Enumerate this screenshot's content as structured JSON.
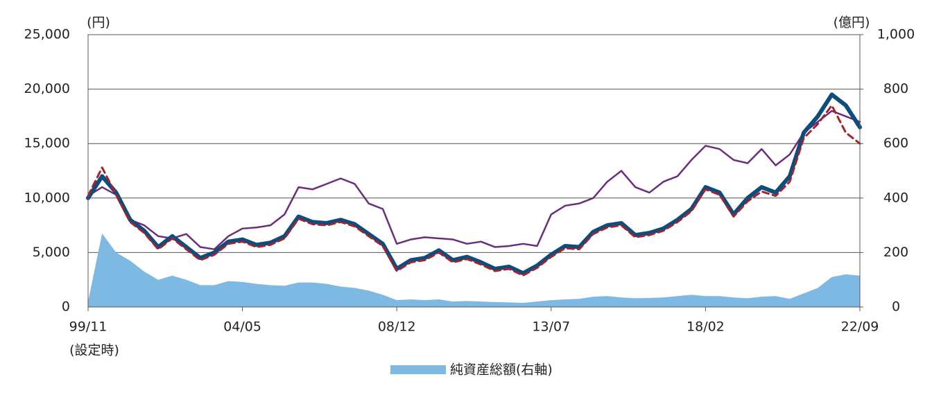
{
  "chart_data": {
    "type": "line",
    "y_unit": "(円)",
    "y2_unit": "(億円)",
    "x_note": "(設定時)",
    "categories": [
      "99/11",
      null,
      null,
      null,
      null,
      null,
      null,
      null,
      null,
      null,
      null,
      "04/05",
      null,
      null,
      null,
      null,
      null,
      null,
      null,
      null,
      null,
      null,
      "08/12",
      null,
      null,
      null,
      null,
      null,
      null,
      null,
      null,
      null,
      null,
      "13/07",
      null,
      null,
      null,
      null,
      null,
      null,
      null,
      null,
      null,
      null,
      "18/02",
      null,
      null,
      null,
      null,
      null,
      null,
      null,
      null,
      null,
      null,
      "22/09"
    ],
    "ylim": [
      0,
      25000
    ],
    "yticks": [
      0,
      {
        "value": 5000,
        "label": "5,000"
      },
      {
        "value": 10000,
        "label": "10,000"
      },
      {
        "value": 15000,
        "label": "15,000"
      },
      {
        "value": 20000,
        "label": "20,000"
      },
      {
        "value": 25000,
        "label": "25,000"
      }
    ],
    "y2lim": [
      0,
      1000
    ],
    "y2ticks": [
      0,
      200,
      400,
      600,
      800,
      {
        "value": 1000,
        "label": "1,000"
      }
    ],
    "grid": true,
    "legend": "bottom",
    "series": [
      {
        "name": "純資産総額(右軸)",
        "kind": "area",
        "axis": "y2",
        "color": "#7db9e3",
        "values": [
          20,
          270,
          200,
          170,
          130,
          100,
          115,
          100,
          80,
          80,
          95,
          92,
          85,
          80,
          78,
          90,
          90,
          85,
          75,
          70,
          60,
          45,
          25,
          28,
          25,
          28,
          20,
          22,
          20,
          18,
          17,
          15,
          20,
          25,
          28,
          30,
          38,
          40,
          35,
          32,
          33,
          35,
          40,
          45,
          40,
          40,
          35,
          32,
          38,
          40,
          30,
          50,
          70,
          110,
          120,
          115
        ]
      },
      {
        "kind": "line",
        "color": "#6b2c7c",
        "width": 2.5,
        "style": "solid",
        "values": [
          10200,
          11000,
          10300,
          8000,
          7500,
          6500,
          6300,
          6700,
          5500,
          5300,
          6500,
          7200,
          7300,
          7500,
          8500,
          11000,
          10800,
          11300,
          11800,
          11300,
          9500,
          9000,
          5800,
          6200,
          6400,
          6300,
          6200,
          5800,
          6000,
          5500,
          5600,
          5800,
          5600,
          8500,
          9300,
          9500,
          10000,
          11500,
          12500,
          11000,
          10500,
          11500,
          12000,
          13500,
          14800,
          14500,
          13500,
          13200,
          14500,
          13000,
          14000,
          16000,
          17000,
          18000,
          17500,
          17000
        ]
      },
      {
        "kind": "line",
        "color": "#0c4d7e",
        "width": 6,
        "style": "solid",
        "values": [
          10000,
          12000,
          10500,
          8000,
          7000,
          5500,
          6500,
          5500,
          4500,
          5000,
          6000,
          6200,
          5700,
          5900,
          6500,
          8300,
          7800,
          7700,
          8000,
          7600,
          6700,
          5800,
          3500,
          4300,
          4500,
          5200,
          4300,
          4600,
          4100,
          3500,
          3700,
          3100,
          3800,
          4800,
          5600,
          5500,
          6900,
          7500,
          7700,
          6600,
          6800,
          7200,
          8000,
          9000,
          11000,
          10500,
          8500,
          10000,
          11000,
          10500,
          12000,
          16000,
          17500,
          19500,
          18500,
          16500
        ]
      },
      {
        "kind": "line",
        "color": "#a3222c",
        "width": 3,
        "style": "dashed",
        "values": [
          10200,
          12800,
          10300,
          7800,
          6800,
          5300,
          6300,
          5300,
          4300,
          4800,
          5800,
          6000,
          5500,
          5700,
          6300,
          8100,
          7600,
          7500,
          7800,
          7400,
          6500,
          5600,
          3300,
          4100,
          4300,
          5000,
          4100,
          4400,
          3900,
          3300,
          3500,
          2900,
          3600,
          4600,
          5400,
          5300,
          6700,
          7300,
          7500,
          6400,
          6600,
          7000,
          7800,
          8800,
          10800,
          10300,
          8300,
          9700,
          10600,
          10200,
          11500,
          15500,
          16800,
          18500,
          16000,
          15000
        ]
      }
    ]
  }
}
